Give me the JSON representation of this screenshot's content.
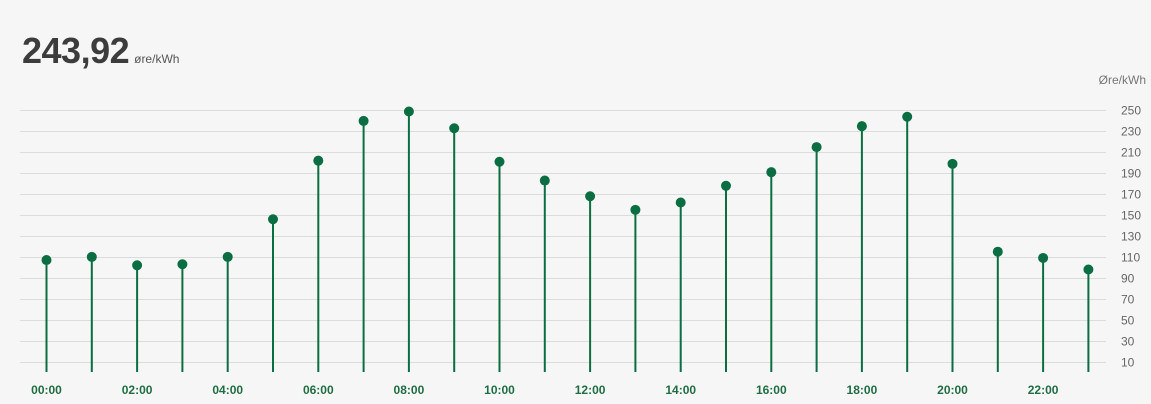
{
  "price": {
    "value": "243,92",
    "unit": "øre/kWh"
  },
  "colors": {
    "series": "#0b6e42",
    "grid": "#dcdcdc",
    "background": "#f6f6f6"
  },
  "chart_data": {
    "type": "lollipop",
    "ylabel": "Øre/kWh",
    "y_axis_position": "right",
    "ylim": [
      0,
      260
    ],
    "yticks": [
      10,
      30,
      50,
      70,
      90,
      110,
      130,
      150,
      170,
      190,
      210,
      230,
      250
    ],
    "grid": true,
    "x_tick_labels": [
      "00:00",
      "02:00",
      "04:00",
      "06:00",
      "08:00",
      "10:00",
      "12:00",
      "14:00",
      "16:00",
      "18:00",
      "20:00",
      "22:00"
    ],
    "categories": [
      "00:00",
      "01:00",
      "02:00",
      "03:00",
      "04:00",
      "05:00",
      "06:00",
      "07:00",
      "08:00",
      "09:00",
      "10:00",
      "11:00",
      "12:00",
      "13:00",
      "14:00",
      "15:00",
      "16:00",
      "17:00",
      "18:00",
      "19:00",
      "20:00",
      "21:00",
      "22:00",
      "23:00"
    ],
    "series": [
      {
        "values": [
          107,
          110,
          102,
          103,
          110,
          146,
          202,
          240,
          249,
          233,
          201,
          183,
          168,
          155,
          162,
          178,
          191,
          215,
          235,
          244,
          199,
          115,
          109,
          98
        ]
      }
    ]
  }
}
